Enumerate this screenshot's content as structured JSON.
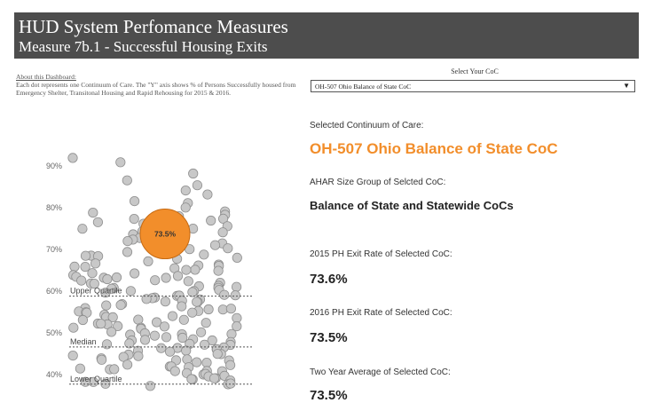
{
  "header": {
    "title": "HUD System Perfomance Measures",
    "subtitle": "Measure 7b.1 - Successful Housing Exits"
  },
  "about": {
    "heading": "About this Dashboard:",
    "text": "Each dot represents one Continuum of Care.  The \"Y\" axis shows % of Persons Successfully housed from Emergency Shelter, Transitonal Housing and Rapid Rehousing for 2015 & 2016."
  },
  "selector": {
    "label": "Select Your CoC",
    "value": "OH-507 Ohio Balance of State CoC"
  },
  "details": {
    "selected_label": "Selected Continuum of Care:",
    "selected_value": "OH-507  Ohio Balance of State CoC",
    "ahar_label": "AHAR Size Group of Selcted CoC:",
    "ahar_value": "Balance of State and Statewide CoCs",
    "rate2015_label": "2015 PH Exit Rate of Selected CoC:",
    "rate2015_value": "73.6%",
    "rate2016_label": "2016 PH Exit Rate of Selected CoC:",
    "rate2016_value": "73.5%",
    "avg_label": "Two Year Average of Selected CoC:",
    "avg_value": "73.5%"
  },
  "chart_data": {
    "type": "scatter",
    "y_ticks": [
      "40%",
      "50%",
      "60%",
      "70%",
      "80%",
      "90%"
    ],
    "ylim": [
      37,
      95
    ],
    "highlight": {
      "label": "73.5%",
      "value": 73.5,
      "color": "#f28e2b"
    },
    "reference_lines": [
      {
        "name": "Upper Quartile",
        "value": 58.6
      },
      {
        "name": "Median",
        "value": 46.4
      },
      {
        "name": "Lower Quartile",
        "value": 37.5
      }
    ],
    "point_color": "#c8c8c8",
    "values": [
      92,
      90.5,
      88,
      86.5,
      85.2,
      84,
      82.8,
      81.5,
      80.6,
      79.8,
      79.1,
      78.6,
      78.2,
      77.8,
      77.4,
      77,
      76.6,
      76.2,
      75.8,
      75.4,
      75,
      74.6,
      74.2,
      73.9,
      73.6,
      73.3,
      73,
      72.7,
      72.4,
      72.1,
      71.8,
      71.5,
      71.2,
      70.9,
      70.6,
      70.3,
      70,
      69.7,
      69.4,
      69.1,
      68.8,
      68.5,
      68.2,
      67.9,
      67.6,
      67.3,
      67,
      66.7,
      66.4,
      66.1,
      65.8,
      65.5,
      65.3,
      65.1,
      64.9,
      64.7,
      64.5,
      64.3,
      64.1,
      63.9,
      63.7,
      63.5,
      63.3,
      63.1,
      62.9,
      62.7,
      62.5,
      62.3,
      62.1,
      61.9,
      61.7,
      61.5,
      61.3,
      61.1,
      60.9,
      60.7,
      60.5,
      60.3,
      60.1,
      59.9,
      59.7,
      59.5,
      59.3,
      59.1,
      58.9,
      58.7,
      58.5,
      58.3,
      58.1,
      57.9,
      57.7,
      57.5,
      57.3,
      57.1,
      56.9,
      56.7,
      56.5,
      56.3,
      56.1,
      55.9,
      55.7,
      55.5,
      55.3,
      55.1,
      54.9,
      54.7,
      54.5,
      54.3,
      54.1,
      53.9,
      53.7,
      53.5,
      53.3,
      53.1,
      52.9,
      52.7,
      52.5,
      52.3,
      52.1,
      51.9,
      51.7,
      51.5,
      51.3,
      51.1,
      50.9,
      50.7,
      50.5,
      50.3,
      50.1,
      49.9,
      49.7,
      49.5,
      49.3,
      49.1,
      48.9,
      48.7,
      48.5,
      48.3,
      48.1,
      47.9,
      47.7,
      47.5,
      47.3,
      47.1,
      46.9,
      46.7,
      46.5,
      46.3,
      46.1,
      45.9,
      45.7,
      45.5,
      45.3,
      45.1,
      44.9,
      44.7,
      44.5,
      44.3,
      44.1,
      43.9,
      43.7,
      43.5,
      43.3,
      43.1,
      42.9,
      42.7,
      42.5,
      42.3,
      42.1,
      41.9,
      41.7,
      41.5,
      41.3,
      41.1,
      40.9,
      40.7,
      40.5,
      40.3,
      40.1,
      39.9,
      39.7,
      39.5,
      39.3,
      39.1,
      38.9,
      38.7,
      38.5,
      38.3,
      38.1,
      37.9,
      37.7,
      37.5,
      37.3,
      37.1
    ]
  }
}
